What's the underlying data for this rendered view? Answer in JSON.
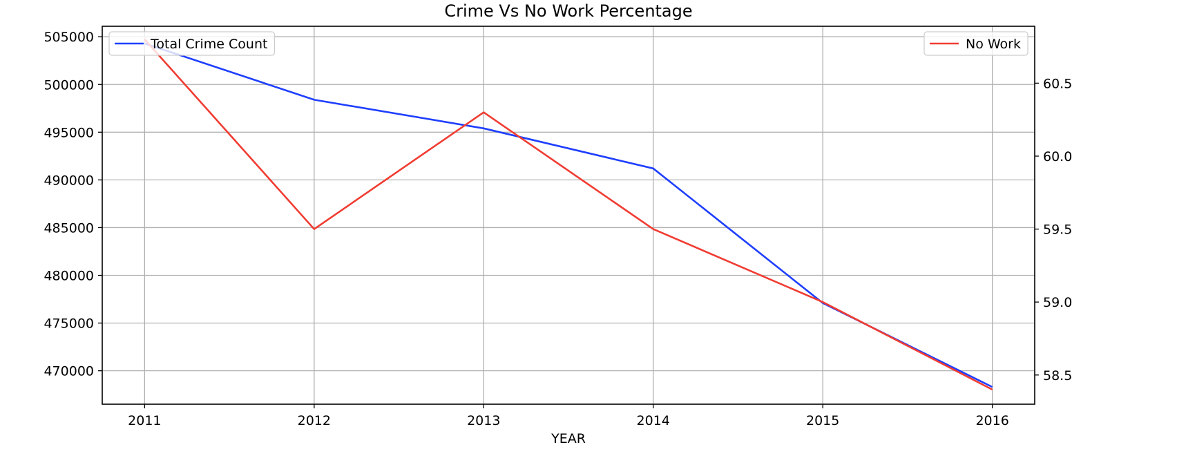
{
  "chart_data": {
    "type": "line",
    "title": "Crime Vs No Work Percentage",
    "xlabel": "YEAR",
    "ylabel": "",
    "ylabel_right": "",
    "x": [
      2011,
      2012,
      2013,
      2014,
      2015,
      2016
    ],
    "x_ticks": [
      "2011",
      "2012",
      "2013",
      "2014",
      "2015",
      "2016"
    ],
    "ylim": [
      466500,
      506100
    ],
    "y_ticks": [
      "470000",
      "475000",
      "480000",
      "485000",
      "490000",
      "495000",
      "500000",
      "505000"
    ],
    "ylim_right": [
      58.3,
      60.89
    ],
    "y_ticks_right": [
      "58.5",
      "59.0",
      "59.5",
      "60.0",
      "60.5"
    ],
    "grid": true,
    "series": [
      {
        "name": "Total Crime Count",
        "axis": "left",
        "color": "#1f3fff",
        "legend_position": "upper-left",
        "values": [
          504300,
          498400,
          495400,
          491200,
          477100,
          468300
        ]
      },
      {
        "name": "No Work",
        "axis": "right",
        "color": "#f03c32",
        "legend_position": "upper-right",
        "values": [
          60.8,
          59.5,
          60.3,
          59.5,
          59.0,
          58.4
        ]
      }
    ]
  }
}
